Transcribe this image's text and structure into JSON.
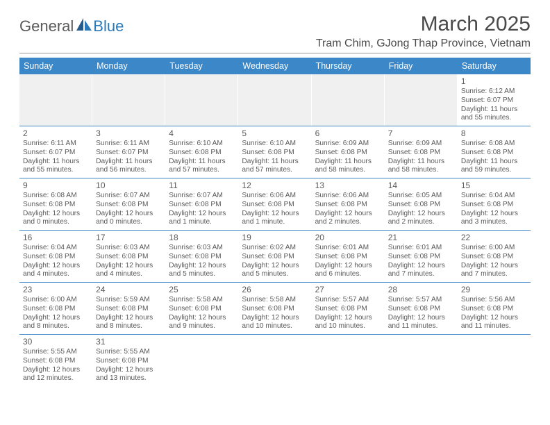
{
  "logo": {
    "word1": "General",
    "word2": "Blue"
  },
  "title": "March 2025",
  "location": "Tram Chim, GJong Thap Province, Vietnam",
  "day_headers": [
    "Sunday",
    "Monday",
    "Tuesday",
    "Wednesday",
    "Thursday",
    "Friday",
    "Saturday"
  ],
  "colors": {
    "header_bg": "#3b87c8",
    "header_text": "#ffffff",
    "rule": "#999999",
    "row_border": "#3b87c8",
    "text": "#5a5a5a",
    "empty_bg": "#f0f0f0",
    "logo_gray": "#5a5a5a",
    "logo_blue": "#2a7ab9"
  },
  "weeks": [
    [
      null,
      null,
      null,
      null,
      null,
      null,
      {
        "day": "1",
        "sunrise": "Sunrise: 6:12 AM",
        "sunset": "Sunset: 6:07 PM",
        "daylight": "Daylight: 11 hours and 55 minutes."
      }
    ],
    [
      {
        "day": "2",
        "sunrise": "Sunrise: 6:11 AM",
        "sunset": "Sunset: 6:07 PM",
        "daylight": "Daylight: 11 hours and 55 minutes."
      },
      {
        "day": "3",
        "sunrise": "Sunrise: 6:11 AM",
        "sunset": "Sunset: 6:07 PM",
        "daylight": "Daylight: 11 hours and 56 minutes."
      },
      {
        "day": "4",
        "sunrise": "Sunrise: 6:10 AM",
        "sunset": "Sunset: 6:08 PM",
        "daylight": "Daylight: 11 hours and 57 minutes."
      },
      {
        "day": "5",
        "sunrise": "Sunrise: 6:10 AM",
        "sunset": "Sunset: 6:08 PM",
        "daylight": "Daylight: 11 hours and 57 minutes."
      },
      {
        "day": "6",
        "sunrise": "Sunrise: 6:09 AM",
        "sunset": "Sunset: 6:08 PM",
        "daylight": "Daylight: 11 hours and 58 minutes."
      },
      {
        "day": "7",
        "sunrise": "Sunrise: 6:09 AM",
        "sunset": "Sunset: 6:08 PM",
        "daylight": "Daylight: 11 hours and 58 minutes."
      },
      {
        "day": "8",
        "sunrise": "Sunrise: 6:08 AM",
        "sunset": "Sunset: 6:08 PM",
        "daylight": "Daylight: 11 hours and 59 minutes."
      }
    ],
    [
      {
        "day": "9",
        "sunrise": "Sunrise: 6:08 AM",
        "sunset": "Sunset: 6:08 PM",
        "daylight": "Daylight: 12 hours and 0 minutes."
      },
      {
        "day": "10",
        "sunrise": "Sunrise: 6:07 AM",
        "sunset": "Sunset: 6:08 PM",
        "daylight": "Daylight: 12 hours and 0 minutes."
      },
      {
        "day": "11",
        "sunrise": "Sunrise: 6:07 AM",
        "sunset": "Sunset: 6:08 PM",
        "daylight": "Daylight: 12 hours and 1 minute."
      },
      {
        "day": "12",
        "sunrise": "Sunrise: 6:06 AM",
        "sunset": "Sunset: 6:08 PM",
        "daylight": "Daylight: 12 hours and 1 minute."
      },
      {
        "day": "13",
        "sunrise": "Sunrise: 6:06 AM",
        "sunset": "Sunset: 6:08 PM",
        "daylight": "Daylight: 12 hours and 2 minutes."
      },
      {
        "day": "14",
        "sunrise": "Sunrise: 6:05 AM",
        "sunset": "Sunset: 6:08 PM",
        "daylight": "Daylight: 12 hours and 2 minutes."
      },
      {
        "day": "15",
        "sunrise": "Sunrise: 6:04 AM",
        "sunset": "Sunset: 6:08 PM",
        "daylight": "Daylight: 12 hours and 3 minutes."
      }
    ],
    [
      {
        "day": "16",
        "sunrise": "Sunrise: 6:04 AM",
        "sunset": "Sunset: 6:08 PM",
        "daylight": "Daylight: 12 hours and 4 minutes."
      },
      {
        "day": "17",
        "sunrise": "Sunrise: 6:03 AM",
        "sunset": "Sunset: 6:08 PM",
        "daylight": "Daylight: 12 hours and 4 minutes."
      },
      {
        "day": "18",
        "sunrise": "Sunrise: 6:03 AM",
        "sunset": "Sunset: 6:08 PM",
        "daylight": "Daylight: 12 hours and 5 minutes."
      },
      {
        "day": "19",
        "sunrise": "Sunrise: 6:02 AM",
        "sunset": "Sunset: 6:08 PM",
        "daylight": "Daylight: 12 hours and 5 minutes."
      },
      {
        "day": "20",
        "sunrise": "Sunrise: 6:01 AM",
        "sunset": "Sunset: 6:08 PM",
        "daylight": "Daylight: 12 hours and 6 minutes."
      },
      {
        "day": "21",
        "sunrise": "Sunrise: 6:01 AM",
        "sunset": "Sunset: 6:08 PM",
        "daylight": "Daylight: 12 hours and 7 minutes."
      },
      {
        "day": "22",
        "sunrise": "Sunrise: 6:00 AM",
        "sunset": "Sunset: 6:08 PM",
        "daylight": "Daylight: 12 hours and 7 minutes."
      }
    ],
    [
      {
        "day": "23",
        "sunrise": "Sunrise: 6:00 AM",
        "sunset": "Sunset: 6:08 PM",
        "daylight": "Daylight: 12 hours and 8 minutes."
      },
      {
        "day": "24",
        "sunrise": "Sunrise: 5:59 AM",
        "sunset": "Sunset: 6:08 PM",
        "daylight": "Daylight: 12 hours and 8 minutes."
      },
      {
        "day": "25",
        "sunrise": "Sunrise: 5:58 AM",
        "sunset": "Sunset: 6:08 PM",
        "daylight": "Daylight: 12 hours and 9 minutes."
      },
      {
        "day": "26",
        "sunrise": "Sunrise: 5:58 AM",
        "sunset": "Sunset: 6:08 PM",
        "daylight": "Daylight: 12 hours and 10 minutes."
      },
      {
        "day": "27",
        "sunrise": "Sunrise: 5:57 AM",
        "sunset": "Sunset: 6:08 PM",
        "daylight": "Daylight: 12 hours and 10 minutes."
      },
      {
        "day": "28",
        "sunrise": "Sunrise: 5:57 AM",
        "sunset": "Sunset: 6:08 PM",
        "daylight": "Daylight: 12 hours and 11 minutes."
      },
      {
        "day": "29",
        "sunrise": "Sunrise: 5:56 AM",
        "sunset": "Sunset: 6:08 PM",
        "daylight": "Daylight: 12 hours and 11 minutes."
      }
    ],
    [
      {
        "day": "30",
        "sunrise": "Sunrise: 5:55 AM",
        "sunset": "Sunset: 6:08 PM",
        "daylight": "Daylight: 12 hours and 12 minutes."
      },
      {
        "day": "31",
        "sunrise": "Sunrise: 5:55 AM",
        "sunset": "Sunset: 6:08 PM",
        "daylight": "Daylight: 12 hours and 13 minutes."
      },
      null,
      null,
      null,
      null,
      null
    ]
  ]
}
